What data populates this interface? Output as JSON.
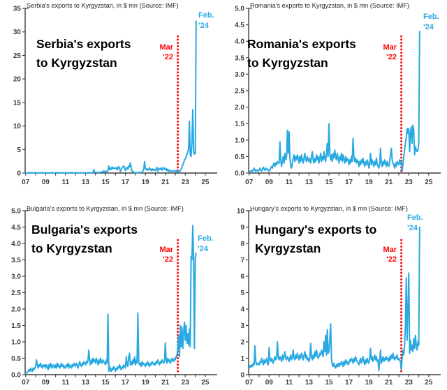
{
  "colors": {
    "series": "#29A9E1",
    "event_line": "#FF0000",
    "event_text": "#FF0000",
    "latest_text": "#29A9E1",
    "axis": "#3d3d3d",
    "title_text": "#262626",
    "tick_text": "#3d3d3d",
    "big_label": "#000000",
    "background": "#ffffff"
  },
  "x_axis": {
    "tick_years_labeled": [
      "07",
      "09",
      "11",
      "13",
      "15",
      "17",
      "19",
      "21",
      "23",
      "25"
    ],
    "first_year": 2007,
    "last_labeled_year": 2025,
    "tick_every_years": 1,
    "label_every_years": 2
  },
  "chart_data": [
    {
      "name": "serbia",
      "type": "line",
      "title": "Serbia's exports to Kyrgyzstan, in $ mn (Source: IMF)",
      "label_lines": [
        "Serbia's exports",
        "to Kyrgyzstan"
      ],
      "event": {
        "label_lines": [
          "Mar",
          "'22"
        ],
        "x": 2022.25
      },
      "latest": {
        "label_lines": [
          "Feb.",
          "'24"
        ],
        "x": 2024.083,
        "value": 32.3
      },
      "ylabel": "$ mn",
      "ylim": [
        0,
        35
      ],
      "ytick_labels": [
        "0",
        "5",
        "10",
        "15",
        "20",
        "25",
        "30",
        "35"
      ],
      "x_start_year": 2007,
      "frequency": "monthly",
      "values": [
        0.05,
        0.05,
        0.06,
        0.05,
        0.05,
        0.06,
        0.05,
        0.05,
        0.06,
        0.05,
        0.05,
        0.06,
        0.05,
        0.06,
        0.05,
        0.06,
        0.05,
        0.05,
        0.06,
        0.05,
        0.06,
        0.05,
        0.06,
        0.05,
        0.05,
        0.05,
        0.06,
        0.05,
        0.06,
        0.05,
        0.05,
        0.06,
        0.05,
        0.06,
        0.05,
        0.05,
        0.05,
        0.06,
        0.05,
        0.05,
        0.06,
        0.05,
        0.06,
        0.05,
        0.05,
        0.06,
        0.05,
        0.06,
        0.05,
        0.05,
        0.06,
        0.05,
        0.05,
        0.06,
        0.05,
        0.06,
        0.05,
        0.05,
        0.06,
        0.05,
        0.05,
        0.06,
        0.05,
        0.06,
        0.05,
        0.05,
        0.06,
        0.05,
        0.06,
        0.05,
        0.05,
        0.06,
        0.05,
        0.05,
        0.05,
        0.06,
        0.05,
        0.06,
        0.05,
        0.06,
        0.05,
        0.1,
        0.7,
        0.2,
        0.1,
        0.15,
        0.1,
        0.2,
        0.15,
        0.1,
        0.15,
        0.2,
        0.3,
        0.25,
        0.5,
        0.3,
        0.2,
        0.4,
        0.3,
        0.5,
        1.5,
        0.7,
        1.0,
        0.8,
        1.3,
        0.9,
        1.1,
        1.0,
        0.9,
        1.2,
        0.7,
        1.0,
        1.4,
        1.0,
        0.3,
        0.8,
        1.1,
        1.3,
        1.5,
        1.2,
        0.5,
        0.9,
        1.2,
        0.8,
        1.5,
        1.3,
        2.2,
        1.0,
        0.4,
        0.3,
        0.2,
        0.1,
        0.05,
        0.06,
        0.1,
        0.05,
        0.1,
        0.1,
        0.15,
        0.1,
        0.2,
        0.4,
        0.8,
        2.4,
        1.0,
        0.7,
        0.9,
        0.6,
        0.8,
        1.1,
        0.7,
        0.5,
        0.9,
        0.6,
        0.8,
        0.7,
        0.5,
        0.9,
        1.2,
        0.4,
        0.7,
        1.0,
        0.8,
        1.1,
        0.6,
        0.9,
        1.2,
        0.8,
        0.7,
        1.0,
        0.5,
        0.8,
        0.3,
        0.6,
        0.4,
        0.5,
        0.3,
        0.4,
        0.5,
        0.4,
        0.3,
        0.5,
        0.2,
        0.3,
        0.4,
        0.3,
        0.5,
        0.8,
        1.2,
        1.8,
        2.2,
        2.8,
        3.0,
        3.5,
        4.0,
        4.5,
        5.0,
        11.0,
        4.0,
        3.5,
        6.5,
        13.5,
        4.5,
        4.0,
        4.2,
        32.3
      ]
    },
    {
      "name": "romania",
      "type": "line",
      "title": "Romania's exports to Kyrgyzstan, in $ mn (Source: IMF)",
      "label_lines": [
        "Romania's exports",
        "to Kyrgyzstan"
      ],
      "event": {
        "label_lines": [
          "Mar",
          "'22"
        ],
        "x": 2022.25
      },
      "latest": {
        "label_lines": [
          "Feb.",
          "'24"
        ],
        "x": 2024.083,
        "value": 4.3
      },
      "ylabel": "$ mn",
      "ylim": [
        0,
        5
      ],
      "ytick_labels": [
        "0.0",
        "0.5",
        "1.0",
        "1.5",
        "2.0",
        "2.5",
        "3.0",
        "3.5",
        "4.0",
        "4.5",
        "5.0"
      ],
      "x_start_year": 2007,
      "frequency": "monthly",
      "values": [
        0.02,
        0.05,
        0.03,
        0.08,
        0.05,
        0.1,
        0.15,
        0.08,
        0.05,
        0.1,
        0.08,
        0.05,
        0.1,
        0.15,
        0.1,
        0.05,
        0.12,
        0.18,
        0.12,
        0.08,
        0.15,
        0.1,
        0.12,
        0.1,
        0.05,
        0.1,
        0.15,
        0.2,
        0.15,
        0.25,
        0.3,
        0.2,
        0.3,
        0.25,
        0.35,
        0.3,
        0.3,
        0.95,
        0.4,
        0.2,
        0.35,
        0.5,
        0.3,
        0.6,
        0.4,
        0.5,
        1.3,
        0.6,
        1.25,
        0.5,
        0.2,
        0.15,
        0.3,
        0.45,
        0.55,
        0.35,
        0.5,
        0.4,
        0.55,
        0.45,
        0.3,
        0.5,
        0.35,
        0.55,
        0.4,
        0.3,
        0.45,
        0.6,
        0.4,
        0.35,
        0.5,
        0.4,
        0.35,
        0.45,
        0.3,
        0.5,
        0.65,
        0.4,
        0.3,
        0.45,
        0.35,
        0.55,
        0.4,
        0.5,
        0.3,
        0.45,
        0.6,
        0.35,
        0.5,
        0.4,
        0.65,
        0.45,
        0.35,
        0.55,
        0.9,
        0.5,
        1.5,
        0.6,
        0.4,
        0.55,
        0.35,
        0.6,
        0.45,
        0.7,
        0.5,
        0.4,
        0.6,
        0.45,
        0.3,
        0.5,
        0.4,
        0.6,
        0.35,
        0.55,
        0.4,
        0.3,
        0.5,
        0.35,
        0.45,
        0.4,
        0.25,
        0.4,
        0.3,
        0.5,
        0.35,
        1.05,
        0.5,
        0.35,
        0.45,
        0.3,
        0.4,
        0.35,
        0.2,
        0.35,
        0.25,
        0.4,
        0.3,
        0.45,
        0.3,
        0.2,
        0.35,
        0.25,
        0.4,
        0.3,
        0.15,
        0.3,
        0.6,
        0.25,
        0.4,
        0.3,
        0.2,
        0.35,
        0.25,
        0.45,
        0.3,
        0.2,
        0.15,
        0.25,
        0.75,
        0.3,
        0.2,
        0.35,
        0.25,
        0.4,
        0.3,
        0.2,
        0.35,
        0.25,
        0.2,
        0.35,
        0.55,
        0.75,
        0.4,
        0.3,
        0.25,
        0.15,
        0.3,
        0.2,
        0.35,
        0.3,
        0.25,
        0.4,
        0.3,
        0.35,
        0.05,
        0.3,
        0.5,
        0.7,
        0.9,
        1.1,
        1.35,
        1.2,
        1.35,
        0.65,
        1.2,
        1.4,
        0.9,
        1.45,
        1.3,
        0.55,
        0.8,
        0.7,
        0.65,
        0.7,
        0.9,
        4.3
      ]
    },
    {
      "name": "bulgaria",
      "type": "line",
      "title": "Bulgaria's exports to Kyrgyzstan, in $ mn (Source: IMF)",
      "label_lines": [
        "Bulgaria's exports",
        "to Kyrgyzstan"
      ],
      "event": {
        "label_lines": [
          "Mar",
          "'22"
        ],
        "x": 2022.25
      },
      "latest": {
        "label_lines": [
          "Feb.",
          "'24"
        ],
        "x": 2024.083,
        "value": 3.7
      },
      "ylabel": "$ mn",
      "ylim": [
        0,
        5
      ],
      "ytick_labels": [
        "0.0",
        "0.5",
        "1.0",
        "1.5",
        "2.0",
        "2.5",
        "3.0",
        "3.5",
        "4.0",
        "4.5",
        "5.0"
      ],
      "x_start_year": 2007,
      "frequency": "monthly",
      "values": [
        0.02,
        0.05,
        0.08,
        0.1,
        0.15,
        0.1,
        0.2,
        0.15,
        0.1,
        0.2,
        0.15,
        0.2,
        0.25,
        0.45,
        0.3,
        0.2,
        0.3,
        0.25,
        0.35,
        0.25,
        0.2,
        0.3,
        0.25,
        0.3,
        0.2,
        0.3,
        0.25,
        0.15,
        0.3,
        0.2,
        0.35,
        0.25,
        0.2,
        0.3,
        0.25,
        0.2,
        0.3,
        0.2,
        0.35,
        0.25,
        0.3,
        0.2,
        0.25,
        0.35,
        0.25,
        0.3,
        0.2,
        0.25,
        0.2,
        0.3,
        0.25,
        0.35,
        0.2,
        0.3,
        0.25,
        0.2,
        0.3,
        0.25,
        0.35,
        0.3,
        0.25,
        0.35,
        0.3,
        0.2,
        0.3,
        0.4,
        0.3,
        0.25,
        0.35,
        0.3,
        0.4,
        0.35,
        0.3,
        0.4,
        0.35,
        0.45,
        0.75,
        0.4,
        0.3,
        0.45,
        0.35,
        0.5,
        0.4,
        0.45,
        0.35,
        0.5,
        0.4,
        0.3,
        0.45,
        0.35,
        0.5,
        0.4,
        0.35,
        0.45,
        0.4,
        0.35,
        0.3,
        0.45,
        0.35,
        1.85,
        0.1,
        0.25,
        0.15,
        0.1,
        0.2,
        0.15,
        0.25,
        0.2,
        0.1,
        0.2,
        0.15,
        0.25,
        0.2,
        0.3,
        0.2,
        0.15,
        0.25,
        0.2,
        0.3,
        0.25,
        0.2,
        0.55,
        0.3,
        0.25,
        0.55,
        0.65,
        0.3,
        0.4,
        0.3,
        0.45,
        0.35,
        0.55,
        0.3,
        0.45,
        0.35,
        1.88,
        0.4,
        0.3,
        0.35,
        0.25,
        0.4,
        0.3,
        0.35,
        0.3,
        0.25,
        0.35,
        0.3,
        0.4,
        0.3,
        0.25,
        0.35,
        0.3,
        0.4,
        0.35,
        0.3,
        0.35,
        0.3,
        0.4,
        0.35,
        0.45,
        0.35,
        0.3,
        0.4,
        0.35,
        0.45,
        0.4,
        0.35,
        0.4,
        0.97,
        0.45,
        0.35,
        0.5,
        0.4,
        0.45,
        0.35,
        0.4,
        0.5,
        0.45,
        0.4,
        0.5,
        0.45,
        0.55,
        0.6,
        0.85,
        1.2,
        0.55,
        1.5,
        0.85,
        1.45,
        0.8,
        1.3,
        1.6,
        1.05,
        1.5,
        0.95,
        1.25,
        0.9,
        1.4,
        0.85,
        3.6,
        3.5,
        4.55,
        3.55,
        0.8,
        3.55,
        3.7
      ]
    },
    {
      "name": "hungary",
      "type": "line",
      "title": "Hungary's exports to Kyrgyzstan, in $ mn (Source: IMF)",
      "label_lines": [
        "Hungary's exports to",
        "Kyrgyzstan"
      ],
      "event": {
        "label_lines": [
          "Mar",
          "'22"
        ],
        "x": 2022.25
      },
      "latest": {
        "label_lines": [
          "Feb.",
          "'24"
        ],
        "x": 2024.083,
        "value": 9.0
      },
      "ylabel": "$ mn",
      "ylim": [
        0,
        10
      ],
      "ytick_labels": [
        "0",
        "1",
        "2",
        "3",
        "4",
        "5",
        "6",
        "7",
        "8",
        "9",
        "10"
      ],
      "x_start_year": 2007,
      "frequency": "monthly",
      "values": [
        0.4,
        0.55,
        0.45,
        0.6,
        0.5,
        0.7,
        0.6,
        1.75,
        0.8,
        0.6,
        0.7,
        0.65,
        0.6,
        0.8,
        0.7,
        1.0,
        0.8,
        0.6,
        0.9,
        0.7,
        0.8,
        1.0,
        0.7,
        0.6,
        1.65,
        0.9,
        0.8,
        1.0,
        0.9,
        0.7,
        0.9,
        1.1,
        0.9,
        1.0,
        2.0,
        1.1,
        0.9,
        1.1,
        1.0,
        0.8,
        1.2,
        0.9,
        1.1,
        1.4,
        1.0,
        0.9,
        1.1,
        1.0,
        0.8,
        1.0,
        1.2,
        0.9,
        1.1,
        1.5,
        1.0,
        0.9,
        1.2,
        1.0,
        1.3,
        1.1,
        0.9,
        1.2,
        1.0,
        1.3,
        1.1,
        0.9,
        1.2,
        1.4,
        1.0,
        1.2,
        0.9,
        1.0,
        0.8,
        1.0,
        1.9,
        1.1,
        0.9,
        1.2,
        1.0,
        1.4,
        1.1,
        1.5,
        1.2,
        1.0,
        1.1,
        1.3,
        1.2,
        1.5,
        1.3,
        1.1,
        2.0,
        1.4,
        2.4,
        1.2,
        2.75,
        1.3,
        1.4,
        2.2,
        3.1,
        1.0,
        0.6,
        0.5,
        0.7,
        0.5,
        0.4,
        0.6,
        0.5,
        0.7,
        0.5,
        0.7,
        0.6,
        0.8,
        0.7,
        0.5,
        0.8,
        0.6,
        0.9,
        0.7,
        0.8,
        0.6,
        0.7,
        0.9,
        0.8,
        1.0,
        0.9,
        0.7,
        1.0,
        0.8,
        1.1,
        0.9,
        0.8,
        0.7,
        0.6,
        0.8,
        1.0,
        0.7,
        0.9,
        1.1,
        0.8,
        0.6,
        0.9,
        0.7,
        1.0,
        0.8,
        0.7,
        1.0,
        1.6,
        0.9,
        1.1,
        0.8,
        1.0,
        1.2,
        0.9,
        1.1,
        0.8,
        0.9,
        0.25,
        0.8,
        1.5,
        0.7,
        0.9,
        1.1,
        0.8,
        1.0,
        0.9,
        1.1,
        0.9,
        1.0,
        0.8,
        1.1,
        0.9,
        1.2,
        1.0,
        1.3,
        1.0,
        0.9,
        1.1,
        1.0,
        1.2,
        0.9,
        1.0,
        0.9,
        0.75,
        0.3,
        1.0,
        1.5,
        1.2,
        1.8,
        3.0,
        5.9,
        2.1,
        4.0,
        6.2,
        1.3,
        2.1,
        1.5,
        1.8,
        1.4,
        2.2,
        1.6,
        2.4,
        1.8,
        1.5,
        2.0,
        1.8,
        9.0
      ]
    }
  ]
}
